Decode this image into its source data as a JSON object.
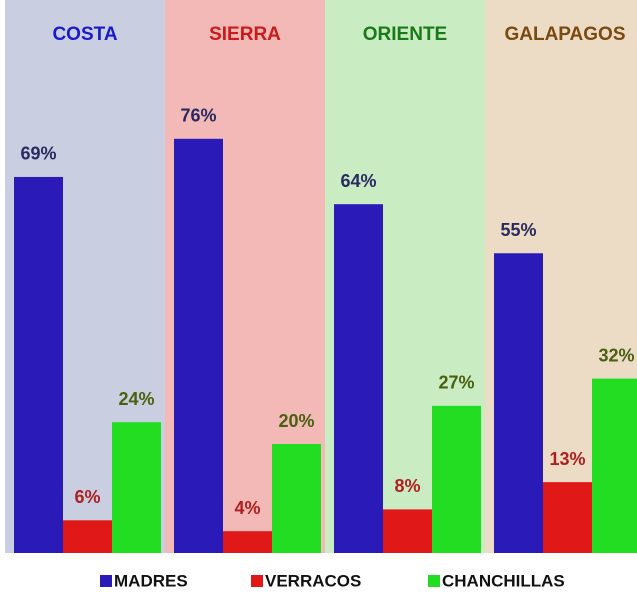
{
  "chart_data": {
    "type": "bar",
    "categories": [
      "COSTA",
      "SIERRA",
      "ORIENTE",
      "GALAPAGOS"
    ],
    "category_colors": [
      "#1a1acc",
      "#cc1a1a",
      "#1a7a1a",
      "#7a4a10"
    ],
    "panel_colors": [
      "#c9cee0",
      "#f2b9b6",
      "#c9ecc2",
      "#ecdcc5"
    ],
    "series": [
      {
        "name": "MADRES",
        "color": "#2a1ab8",
        "label_color": "#2a2a60",
        "values": [
          69,
          76,
          64,
          55
        ],
        "value_labels": [
          "69%",
          "76%",
          "64%",
          "55%"
        ]
      },
      {
        "name": "VERRACOS",
        "color": "#e01818",
        "label_color": "#b02020",
        "values": [
          6,
          4,
          8,
          13
        ],
        "value_labels": [
          "6%",
          "4%",
          "8%",
          "13%"
        ]
      },
      {
        "name": "CHANCHILLAS",
        "color": "#22dd22",
        "label_color": "#4a6010",
        "values": [
          24,
          20,
          27,
          32
        ],
        "value_labels": [
          "24%",
          "20%",
          "27%",
          "32%"
        ]
      }
    ],
    "ylim": [
      0,
      100
    ]
  }
}
